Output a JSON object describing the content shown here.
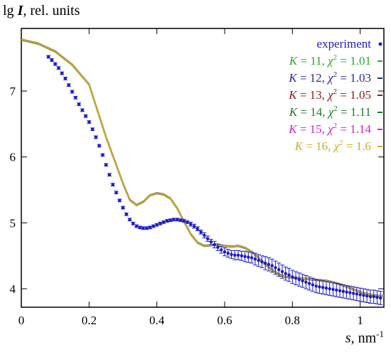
{
  "chart_data": {
    "type": "line",
    "ylabel": "lg I, rel. units",
    "xlabel": "s, nm-1",
    "xlim": [
      0,
      1.07
    ],
    "ylim": [
      3.72,
      7.95
    ],
    "xticks": [
      "0",
      "0.2",
      "0.4",
      "0.6",
      "0.8",
      "1"
    ],
    "yticks": [
      "4",
      "5",
      "6",
      "7"
    ],
    "legend_position": "top-right",
    "experiment": {
      "name": "experiment",
      "color": "#1a1acc",
      "x": [
        0.08,
        0.09,
        0.1,
        0.11,
        0.12,
        0.13,
        0.14,
        0.15,
        0.16,
        0.17,
        0.18,
        0.19,
        0.2,
        0.21,
        0.22,
        0.23,
        0.24,
        0.25,
        0.26,
        0.27,
        0.28,
        0.29,
        0.3,
        0.31,
        0.32,
        0.33,
        0.34,
        0.35,
        0.36,
        0.37,
        0.38,
        0.39,
        0.4,
        0.41,
        0.42,
        0.43,
        0.44,
        0.45,
        0.46,
        0.47,
        0.48,
        0.49,
        0.5,
        0.51,
        0.52,
        0.53,
        0.54,
        0.55,
        0.56,
        0.57,
        0.58,
        0.59,
        0.6,
        0.61,
        0.62,
        0.63,
        0.64,
        0.65,
        0.66,
        0.67,
        0.68,
        0.69,
        0.7,
        0.71,
        0.72,
        0.73,
        0.74,
        0.75,
        0.76,
        0.77,
        0.78,
        0.79,
        0.8,
        0.81,
        0.82,
        0.83,
        0.84,
        0.85,
        0.86,
        0.87,
        0.88,
        0.89,
        0.9,
        0.91,
        0.92,
        0.93,
        0.94,
        0.95,
        0.96,
        0.97,
        0.98,
        0.99,
        1.0,
        1.01,
        1.02,
        1.03,
        1.04,
        1.05,
        1.06
      ],
      "y": [
        7.52,
        7.47,
        7.41,
        7.35,
        7.27,
        7.19,
        7.09,
        6.99,
        6.9,
        6.8,
        6.71,
        6.62,
        6.53,
        6.42,
        6.3,
        6.17,
        6.03,
        5.88,
        5.73,
        5.58,
        5.46,
        5.34,
        5.23,
        5.13,
        5.05,
        4.99,
        4.95,
        4.93,
        4.92,
        4.92,
        4.93,
        4.95,
        4.97,
        4.99,
        5.01,
        5.03,
        5.04,
        5.05,
        5.05,
        5.04,
        5.03,
        5.01,
        4.98,
        4.95,
        4.91,
        4.86,
        4.81,
        4.76,
        4.71,
        4.67,
        4.63,
        4.59,
        4.56,
        4.54,
        4.52,
        4.51,
        4.51,
        4.5,
        4.49,
        4.48,
        4.47,
        4.45,
        4.43,
        4.41,
        4.39,
        4.37,
        4.35,
        4.32,
        4.29,
        4.26,
        4.23,
        4.21,
        4.18,
        4.16,
        4.14,
        4.12,
        4.1,
        4.08,
        4.06,
        4.04,
        4.03,
        4.02,
        4.01,
        4.0,
        3.99,
        3.98,
        3.97,
        3.96,
        3.95,
        3.94,
        3.93,
        3.92,
        3.91,
        3.9,
        3.89,
        3.88,
        3.88,
        3.87,
        3.86
      ],
      "error_bar": [
        0.02,
        0.02,
        0.02,
        0.02,
        0.02,
        0.02,
        0.02,
        0.02,
        0.02,
        0.02,
        0.02,
        0.02,
        0.02,
        0.02,
        0.02,
        0.02,
        0.02,
        0.02,
        0.02,
        0.02,
        0.02,
        0.02,
        0.02,
        0.02,
        0.02,
        0.02,
        0.02,
        0.02,
        0.02,
        0.02,
        0.02,
        0.02,
        0.02,
        0.02,
        0.02,
        0.02,
        0.02,
        0.02,
        0.02,
        0.02,
        0.02,
        0.02,
        0.03,
        0.03,
        0.03,
        0.03,
        0.04,
        0.04,
        0.04,
        0.05,
        0.05,
        0.05,
        0.06,
        0.06,
        0.06,
        0.07,
        0.07,
        0.07,
        0.08,
        0.08,
        0.08,
        0.09,
        0.09,
        0.09,
        0.1,
        0.1,
        0.1,
        0.1,
        0.1,
        0.1,
        0.1,
        0.1,
        0.1,
        0.1,
        0.1,
        0.1,
        0.1,
        0.1,
        0.1,
        0.1,
        0.1,
        0.1,
        0.1,
        0.1,
        0.1,
        0.1,
        0.1,
        0.1,
        0.1,
        0.1,
        0.1,
        0.1,
        0.1,
        0.1,
        0.1,
        0.1,
        0.1,
        0.1,
        0.1
      ]
    },
    "model_curve": {
      "x": [
        0,
        0.05,
        0.1,
        0.15,
        0.2,
        0.25,
        0.3,
        0.32,
        0.34,
        0.36,
        0.38,
        0.4,
        0.42,
        0.44,
        0.46,
        0.48,
        0.5,
        0.52,
        0.54,
        0.56,
        0.58,
        0.6,
        0.62,
        0.64,
        0.66,
        0.68,
        0.7,
        0.72,
        0.74,
        0.76,
        0.78,
        0.8,
        0.82,
        0.84,
        0.86,
        0.88,
        0.9,
        0.92,
        0.94,
        0.96,
        0.98,
        1.0,
        1.02,
        1.04,
        1.06,
        1.07
      ],
      "y": [
        7.78,
        7.72,
        7.6,
        7.4,
        7.1,
        6.3,
        5.6,
        5.35,
        5.27,
        5.32,
        5.42,
        5.45,
        5.43,
        5.37,
        5.22,
        5.02,
        4.83,
        4.7,
        4.65,
        4.66,
        4.67,
        4.65,
        4.64,
        4.65,
        4.62,
        4.56,
        4.47,
        4.37,
        4.29,
        4.22,
        4.18,
        4.17,
        4.16,
        4.15,
        4.14,
        4.13,
        4.12,
        4.1,
        4.07,
        4.03,
        3.99,
        3.95,
        3.92,
        3.9,
        3.89,
        3.89
      ]
    },
    "series": [
      {
        "K": "11",
        "chi2": "1.01",
        "color": "#2aaa2a"
      },
      {
        "K": "12",
        "chi2": "1.03",
        "color": "#2a2a99"
      },
      {
        "K": "13",
        "chi2": "1.05",
        "color": "#8b1a1a"
      },
      {
        "K": "14",
        "chi2": "1.11",
        "color": "#1a7a2a"
      },
      {
        "K": "15",
        "chi2": "1.14",
        "color": "#cc22cc"
      },
      {
        "K": "16",
        "chi2": "1.6",
        "color": "#c8b01a"
      }
    ]
  }
}
